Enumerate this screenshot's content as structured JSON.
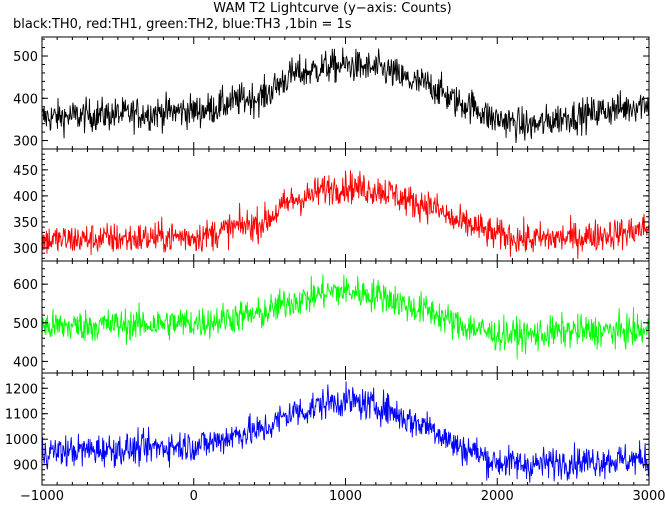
{
  "chart_data": {
    "type": "line",
    "title": "WAM T2 Lightcurve (y−axis: Counts)",
    "subtitle": "black:TH0, red:TH1, green:TH2, blue:TH3 ,1bin = 1s",
    "xlim": [
      -1000,
      3000
    ],
    "x_ticks": [
      -1000,
      0,
      1000,
      2000,
      3000
    ],
    "x_tick_labels": [
      "−1000",
      "0",
      "1000",
      "2000",
      "3000"
    ],
    "x_anchor": [
      -1000,
      -500,
      0,
      400,
      700,
      900,
      1000,
      1200,
      1500,
      1800,
      2000,
      2200,
      2500,
      2800,
      3000
    ],
    "panels": [
      {
        "series": "TH0",
        "color": "#000000",
        "ylim": [
          280,
          545
        ],
        "y_ticks": [
          300,
          400,
          500
        ],
        "mean": [
          355,
          362,
          370,
          400,
          460,
          475,
          478,
          470,
          435,
          385,
          350,
          335,
          358,
          375,
          390
        ],
        "noise": 28
      },
      {
        "series": "TH1",
        "color": "#ff0000",
        "ylim": [
          275,
          490
        ],
        "y_ticks": [
          300,
          350,
          400,
          450
        ],
        "mean": [
          315,
          318,
          322,
          345,
          395,
          415,
          418,
          412,
          385,
          345,
          325,
          317,
          320,
          328,
          338
        ],
        "noise": 22
      },
      {
        "series": "TH2",
        "color": "#00ff00",
        "ylim": [
          370,
          660
        ],
        "y_ticks": [
          400,
          500,
          600
        ],
        "mean": [
          490,
          495,
          500,
          520,
          560,
          580,
          582,
          572,
          535,
          490,
          470,
          468,
          478,
          478,
          478
        ],
        "noise": 30
      },
      {
        "series": "TH3",
        "color": "#0000ff",
        "ylim": [
          820,
          1260
        ],
        "y_ticks": [
          900,
          1000,
          1100,
          1200
        ],
        "mean": [
          950,
          960,
          975,
          1030,
          1110,
          1145,
          1150,
          1130,
          1060,
          960,
          910,
          900,
          912,
          918,
          922
        ],
        "noise": 45
      }
    ]
  }
}
